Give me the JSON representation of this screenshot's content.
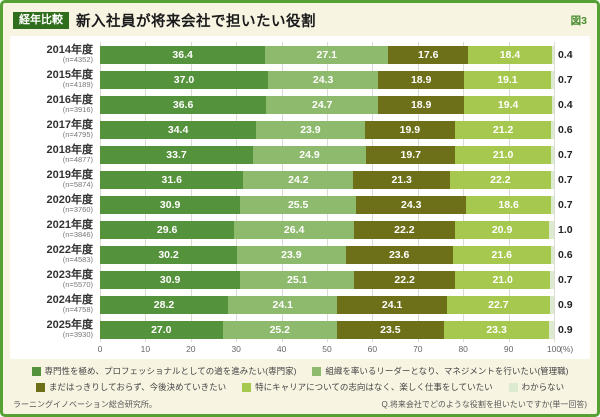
{
  "header": {
    "tag": "経年比較",
    "title": "新入社員が将来会社で担いたい役割",
    "figure_label": "図3"
  },
  "footer": {
    "left": "ラーニングイノベーション総合研究所。",
    "right": "Q.将来会社でどのような役割を担いたいですか(単一回答)"
  },
  "chart_data": {
    "type": "bar",
    "stacked": true,
    "orientation": "horizontal",
    "title": "新入社員が将来会社で担いたい役割",
    "xlabel": "",
    "ylabel": "",
    "x_unit": "(%)",
    "xlim": [
      0,
      100
    ],
    "x_ticks": [
      0,
      10,
      20,
      30,
      40,
      50,
      60,
      70,
      80,
      90,
      100
    ],
    "grid": true,
    "legend_position": "bottom",
    "categories": [
      "2014年度",
      "2015年度",
      "2016年度",
      "2017年度",
      "2018年度",
      "2019年度",
      "2020年度",
      "2021年度",
      "2022年度",
      "2023年度",
      "2024年度",
      "2025年度"
    ],
    "sample_labels": [
      "(n=4352)",
      "(n=4189)",
      "(n=3916)",
      "(n=4795)",
      "(n=4877)",
      "(n=5874)",
      "(n=3760)",
      "(n=3846)",
      "(n=4583)",
      "(n=5570)",
      "(n=4758)",
      "(n=3930)"
    ],
    "series": [
      {
        "name": "専門性を極め、プロフェッショナルとしての道を進みたい(専門家)",
        "color": "#55923c",
        "values": [
          36.4,
          37.0,
          36.6,
          34.4,
          33.7,
          31.6,
          30.9,
          29.6,
          30.2,
          30.9,
          28.2,
          27.0
        ]
      },
      {
        "name": "組織を率いるリーダーとなり、マネジメントを行いたい(管理職)",
        "color": "#8eba6d",
        "values": [
          27.1,
          24.3,
          24.7,
          23.9,
          24.9,
          24.2,
          25.5,
          26.4,
          23.9,
          25.1,
          24.1,
          25.2
        ]
      },
      {
        "name": "まだはっきりしておらず、今後決めていきたい",
        "color": "#6d7019",
        "values": [
          17.6,
          18.9,
          18.9,
          19.9,
          19.7,
          21.3,
          24.3,
          22.2,
          23.6,
          22.2,
          24.1,
          23.5
        ]
      },
      {
        "name": "特にキャリアについての志向はなく、楽しく仕事をしていたい",
        "color": "#a6c84e",
        "values": [
          18.4,
          19.1,
          19.4,
          21.2,
          21.0,
          22.2,
          18.6,
          20.9,
          21.6,
          21.0,
          22.7,
          23.3
        ]
      },
      {
        "name": "わからない",
        "color": "#dcead0",
        "values": [
          0.4,
          0.7,
          0.4,
          0.6,
          0.7,
          0.7,
          0.7,
          1.0,
          0.6,
          0.7,
          0.9,
          0.9
        ]
      }
    ],
    "legend_rows": [
      [
        0,
        1
      ],
      [
        2,
        3,
        4
      ]
    ],
    "outside_value_series": 4
  }
}
